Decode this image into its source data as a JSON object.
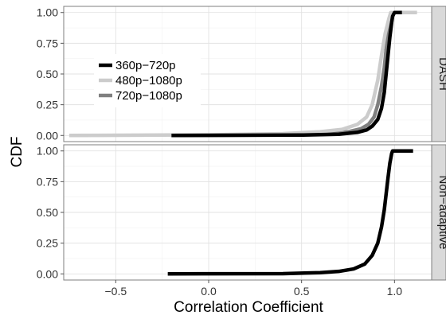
{
  "chart_data": {
    "type": "line",
    "xlabel": "Correlation Coefficient",
    "ylabel": "CDF",
    "xlim": [
      -0.78,
      1.2
    ],
    "ylim": [
      -0.05,
      1.05
    ],
    "x_ticks": [
      -0.5,
      0.0,
      0.5,
      1.0
    ],
    "x_tick_labels": [
      "−0.5",
      "0.0",
      "0.5",
      "1.0"
    ],
    "y_ticks": [
      0.0,
      0.25,
      0.5,
      0.75,
      1.0
    ],
    "y_tick_labels": [
      "0.00",
      "0.25",
      "0.50",
      "0.75",
      "1.00"
    ],
    "grid": true,
    "legend_placement": "left-center (inside top panel)",
    "panels": [
      {
        "strip_label": "DASH",
        "series": [
          {
            "name": "720p−1080p",
            "color": "#808080",
            "points": [
              [
                -0.2,
                0.0
              ],
              [
                0.3,
                0.003
              ],
              [
                0.6,
                0.01
              ],
              [
                0.75,
                0.03
              ],
              [
                0.82,
                0.055
              ],
              [
                0.86,
                0.09
              ],
              [
                0.89,
                0.15
              ],
              [
                0.91,
                0.25
              ],
              [
                0.93,
                0.4
              ],
              [
                0.945,
                0.55
              ],
              [
                0.955,
                0.7
              ],
              [
                0.965,
                0.83
              ],
              [
                0.975,
                0.93
              ],
              [
                0.985,
                0.985
              ],
              [
                0.995,
                1.0
              ],
              [
                1.12,
                1.0
              ]
            ]
          },
          {
            "name": "480p−1080p",
            "color": "#cccccc",
            "points": [
              [
                -0.75,
                0.0
              ],
              [
                0.0,
                0.005
              ],
              [
                0.4,
                0.015
              ],
              [
                0.6,
                0.03
              ],
              [
                0.72,
                0.05
              ],
              [
                0.8,
                0.09
              ],
              [
                0.85,
                0.15
              ],
              [
                0.88,
                0.25
              ],
              [
                0.91,
                0.45
              ],
              [
                0.93,
                0.65
              ],
              [
                0.95,
                0.83
              ],
              [
                0.97,
                0.95
              ],
              [
                0.98,
                1.0
              ],
              [
                1.12,
                1.0
              ]
            ]
          },
          {
            "name": "360p−720p",
            "color": "#000000",
            "points": [
              [
                -0.2,
                0.0
              ],
              [
                0.5,
                0.003
              ],
              [
                0.7,
                0.01
              ],
              [
                0.8,
                0.025
              ],
              [
                0.85,
                0.045
              ],
              [
                0.88,
                0.075
              ],
              [
                0.91,
                0.13
              ],
              [
                0.93,
                0.22
              ],
              [
                0.945,
                0.35
              ],
              [
                0.955,
                0.5
              ],
              [
                0.965,
                0.65
              ],
              [
                0.975,
                0.8
              ],
              [
                0.985,
                0.92
              ],
              [
                0.99,
                0.97
              ],
              [
                1.0,
                1.0
              ],
              [
                1.04,
                1.0
              ]
            ]
          }
        ]
      },
      {
        "strip_label": "Non−adaptive",
        "series": [
          {
            "name": "360p−720p",
            "color": "#000000",
            "points": [
              [
                -0.22,
                0.0
              ],
              [
                0.4,
                0.002
              ],
              [
                0.6,
                0.01
              ],
              [
                0.7,
                0.02
              ],
              [
                0.78,
                0.04
              ],
              [
                0.84,
                0.08
              ],
              [
                0.88,
                0.15
              ],
              [
                0.91,
                0.25
              ],
              [
                0.93,
                0.38
              ],
              [
                0.945,
                0.52
              ],
              [
                0.955,
                0.65
              ],
              [
                0.965,
                0.78
              ],
              [
                0.975,
                0.9
              ],
              [
                0.985,
                0.98
              ],
              [
                0.99,
                1.0
              ],
              [
                1.1,
                1.0
              ]
            ]
          }
        ]
      }
    ]
  }
}
